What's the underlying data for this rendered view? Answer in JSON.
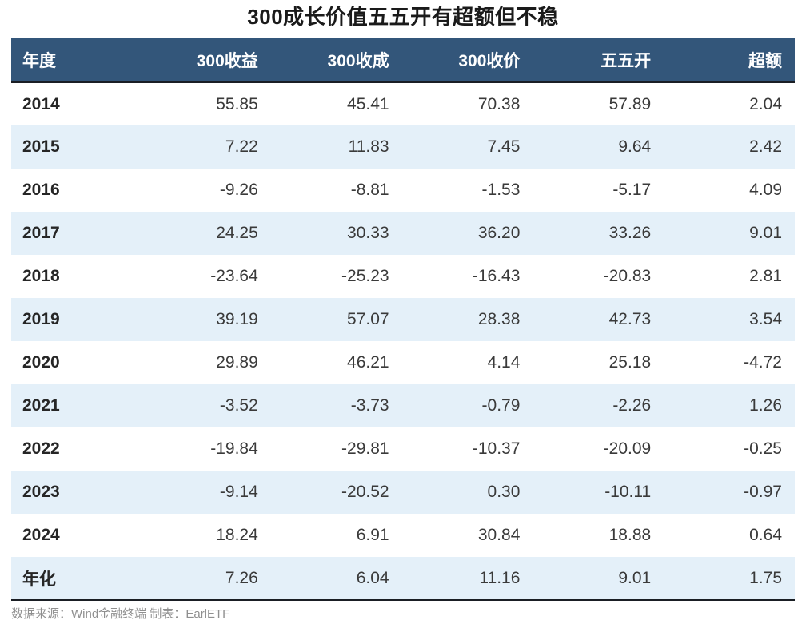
{
  "title": "300成长价值五五开有超额但不稳",
  "table": {
    "columns": [
      "年度",
      "300收益",
      "300收成",
      "300收价",
      "五五开",
      "超额"
    ],
    "rows": [
      {
        "label": "2014",
        "values": [
          "55.85",
          "45.41",
          "70.38",
          "57.89",
          "2.04"
        ]
      },
      {
        "label": "2015",
        "values": [
          "7.22",
          "11.83",
          "7.45",
          "9.64",
          "2.42"
        ]
      },
      {
        "label": "2016",
        "values": [
          "-9.26",
          "-8.81",
          "-1.53",
          "-5.17",
          "4.09"
        ]
      },
      {
        "label": "2017",
        "values": [
          "24.25",
          "30.33",
          "36.20",
          "33.26",
          "9.01"
        ]
      },
      {
        "label": "2018",
        "values": [
          "-23.64",
          "-25.23",
          "-16.43",
          "-20.83",
          "2.81"
        ]
      },
      {
        "label": "2019",
        "values": [
          "39.19",
          "57.07",
          "28.38",
          "42.73",
          "3.54"
        ]
      },
      {
        "label": "2020",
        "values": [
          "29.89",
          "46.21",
          "4.14",
          "25.18",
          "-4.72"
        ]
      },
      {
        "label": "2021",
        "values": [
          "-3.52",
          "-3.73",
          "-0.79",
          "-2.26",
          "1.26"
        ]
      },
      {
        "label": "2022",
        "values": [
          "-19.84",
          "-29.81",
          "-10.37",
          "-20.09",
          "-0.25"
        ]
      },
      {
        "label": "2023",
        "values": [
          "-9.14",
          "-20.52",
          "0.30",
          "-10.11",
          "-0.97"
        ]
      },
      {
        "label": "2024",
        "values": [
          "18.24",
          "6.91",
          "30.84",
          "18.88",
          "0.64"
        ]
      },
      {
        "label": "年化",
        "values": [
          "7.26",
          "6.04",
          "11.16",
          "9.01",
          "1.75"
        ]
      }
    ]
  },
  "footer": {
    "note": "数据来源：Wind金融终端 制表：EarlETF"
  },
  "colors": {
    "header_bg": "#33567A",
    "header_text": "#FFFFFF",
    "row_bg": "#FFFFFF",
    "row_alt_bg": "#E4F0F9",
    "border_dark": "#1A1E24",
    "title_text": "#1A1A1A",
    "year_text": "#262626",
    "value_text": "#3A3A3A",
    "footer_text": "#8F8F8F"
  },
  "chart_data": {
    "type": "table",
    "title": "300成长价值五五开有超额但不稳",
    "columns": [
      "年度",
      "300收益",
      "300收成",
      "300收价",
      "五五开",
      "超额"
    ],
    "rows": [
      [
        "2014",
        55.85,
        45.41,
        70.38,
        57.89,
        2.04
      ],
      [
        "2015",
        7.22,
        11.83,
        7.45,
        9.64,
        2.42
      ],
      [
        "2016",
        -9.26,
        -8.81,
        -1.53,
        -5.17,
        4.09
      ],
      [
        "2017",
        24.25,
        30.33,
        36.2,
        33.26,
        9.01
      ],
      [
        "2018",
        -23.64,
        -25.23,
        -16.43,
        -20.83,
        2.81
      ],
      [
        "2019",
        39.19,
        57.07,
        28.38,
        42.73,
        3.54
      ],
      [
        "2020",
        29.89,
        46.21,
        4.14,
        25.18,
        -4.72
      ],
      [
        "2021",
        -3.52,
        -3.73,
        -0.79,
        -2.26,
        1.26
      ],
      [
        "2022",
        -19.84,
        -29.81,
        -10.37,
        -20.09,
        -0.25
      ],
      [
        "2023",
        -9.14,
        -20.52,
        0.3,
        -10.11,
        -0.97
      ],
      [
        "2024",
        18.24,
        6.91,
        30.84,
        18.88,
        0.64
      ],
      [
        "年化",
        7.26,
        6.04,
        11.16,
        9.01,
        1.75
      ]
    ],
    "row_striping": "alternate-light-blue",
    "legend_position": "none",
    "grid": false,
    "source_note": "数据来源：Wind金融终端 制表：EarlETF"
  }
}
